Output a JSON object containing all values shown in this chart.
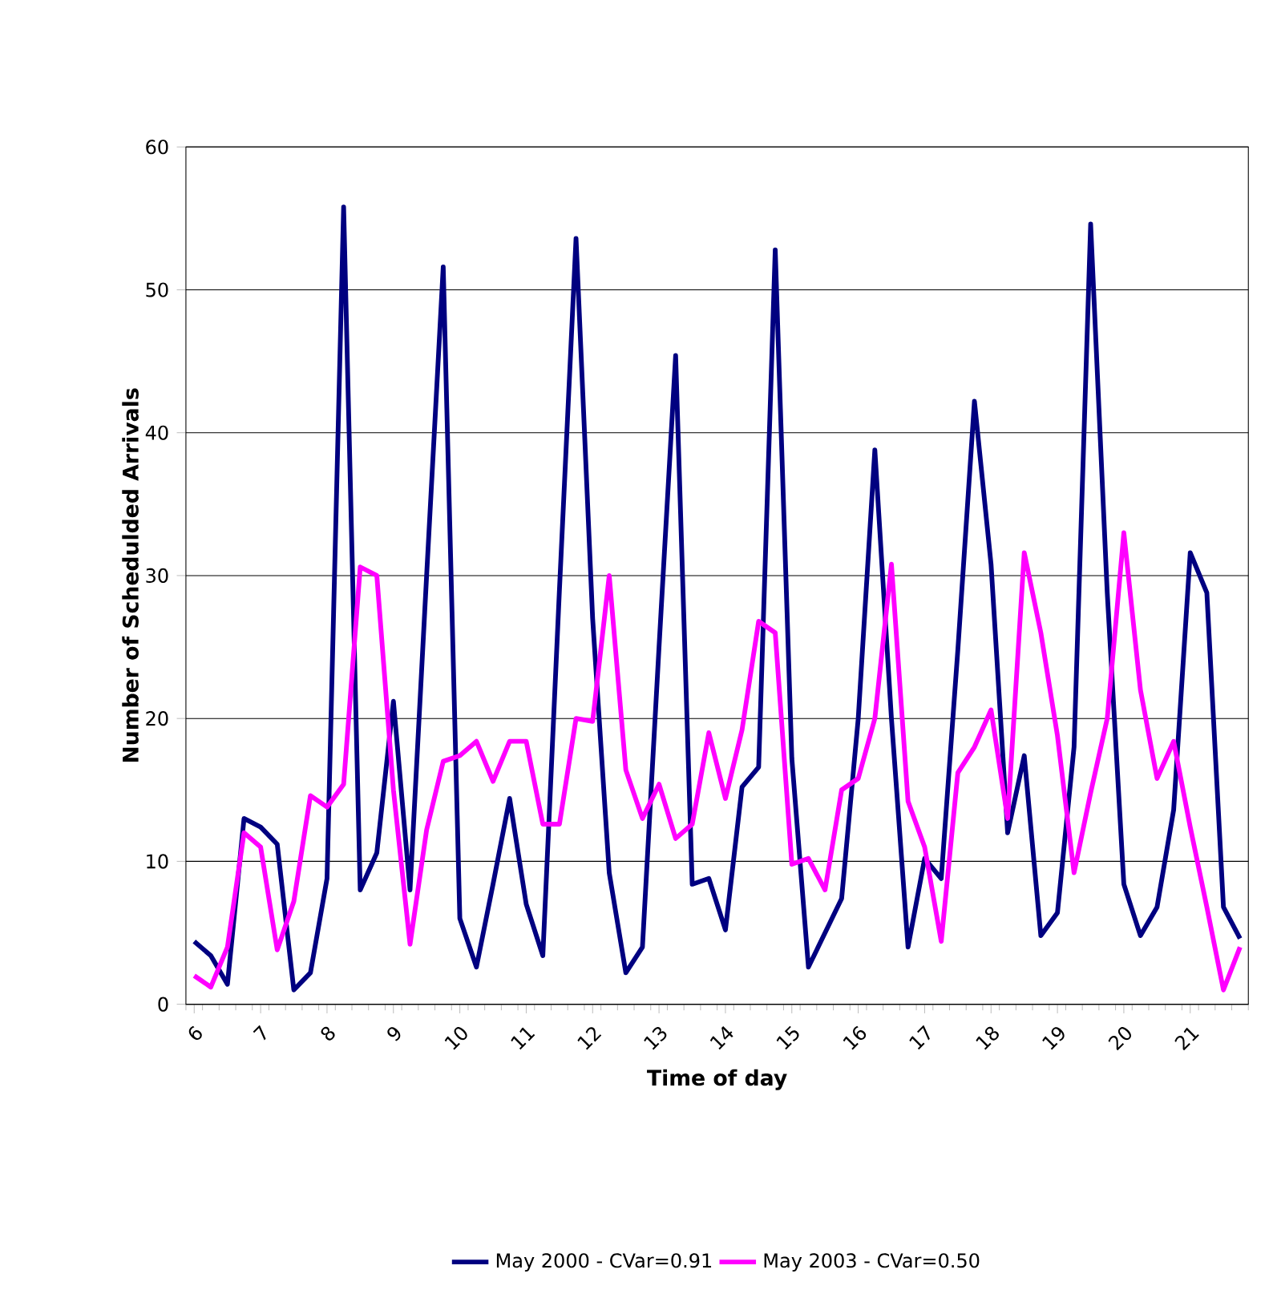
{
  "chart_data": {
    "type": "line",
    "xlabel": "Time of day",
    "ylabel": "Number of Schedulded Arrivals",
    "categories": [
      "6",
      null,
      null,
      null,
      "7",
      null,
      null,
      null,
      "8",
      null,
      null,
      null,
      "9",
      null,
      null,
      null,
      "10",
      null,
      null,
      null,
      "11",
      null,
      null,
      null,
      "12",
      null,
      null,
      null,
      "13",
      null,
      null,
      null,
      "14",
      null,
      null,
      null,
      "15",
      null,
      null,
      null,
      "16",
      null,
      null,
      null,
      "17",
      null,
      null,
      null,
      "18",
      null,
      null,
      null,
      "19",
      null,
      null,
      null,
      "20",
      null,
      null,
      null,
      "21",
      null,
      null,
      null
    ],
    "series": [
      {
        "name": "May 2000 - CVar=0.91",
        "color": "#000080",
        "values": [
          4.4,
          3.4,
          1.4,
          13,
          12.4,
          11.2,
          1.0,
          2.2,
          8.8,
          55.8,
          8,
          10.6,
          21.2,
          8,
          30,
          51.6,
          6,
          2.6,
          8.4,
          14.4,
          7,
          3.4,
          29,
          53.6,
          27,
          9.2,
          2.2,
          4,
          25,
          45.4,
          8.4,
          8.8,
          5.2,
          15.2,
          16.6,
          52.8,
          17.2,
          2.6,
          5,
          7.4,
          20,
          38.8,
          20,
          4,
          10.2,
          8.8,
          24.8,
          42.2,
          30.8,
          12,
          17.4,
          4.8,
          6.4,
          18,
          54.6,
          28.8,
          8.4,
          4.8,
          6.8,
          13.6,
          31.6,
          28.8,
          6.8,
          4.6
        ]
      },
      {
        "name": "May 2003 - CVar=0.50",
        "color": "#ff00ff",
        "values": [
          2,
          1.2,
          4,
          12,
          11,
          3.8,
          7.2,
          14.6,
          13.8,
          15.4,
          30.6,
          30,
          15,
          4.2,
          12.2,
          17,
          17.4,
          18.4,
          15.6,
          18.4,
          18.4,
          12.6,
          12.6,
          20,
          19.8,
          30,
          16.4,
          13,
          15.4,
          11.6,
          12.6,
          19,
          14.4,
          19.2,
          26.8,
          26,
          9.8,
          10.2,
          8,
          15,
          15.8,
          20,
          30.8,
          14.2,
          11,
          4.4,
          16.2,
          18,
          20.6,
          13,
          31.6,
          26,
          18.8,
          9.2,
          14.8,
          20,
          33,
          22,
          15.8,
          18.4,
          12.4,
          6.8,
          1,
          4
        ]
      }
    ],
    "ylim": [
      0,
      60
    ],
    "yticks": [
      0,
      10,
      20,
      30,
      40,
      50,
      60
    ],
    "grid": "y",
    "legend": "bottom",
    "line_style": "solid",
    "marker": "none"
  }
}
